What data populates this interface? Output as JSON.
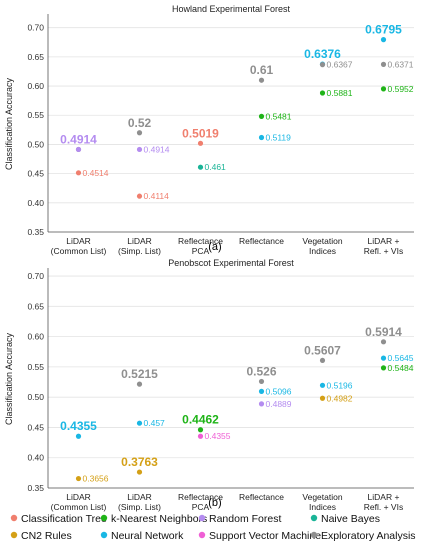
{
  "figure": {
    "label_a": "(a)",
    "label_b": "(b)"
  },
  "colors": {
    "Classification Tree": "#f07f6e",
    "k-Nearest Neighbors": "#1fb418",
    "Random Forest": "#b48cf0",
    "Naive Bayes": "#1ab497",
    "CN2 Rules": "#d4a017",
    "Neural Network": "#19b7e4",
    "Support Vector Machine": "#ef5fd5",
    "Exploratory Analysis": "#8f8f8f"
  },
  "legend": {
    "rows": [
      [
        "Classification Tree",
        "k-Nearest Neighbors",
        "Random Forest",
        "Naive Bayes"
      ],
      [
        "CN2 Rules",
        "Neural Network",
        "Support Vector Machine",
        "Exploratory Analysis"
      ]
    ]
  },
  "chart_data": [
    {
      "type": "scatter",
      "title": "Howland Experimental Forest",
      "ylabel": "Classification Accuracy",
      "xlabel": "",
      "ylim": [
        0.35,
        0.72
      ],
      "yticks": [
        "0.35",
        "0.40",
        "0.45",
        "0.50",
        "0.55",
        "0.60",
        "0.65",
        "0.70"
      ],
      "grid": true,
      "categories": [
        [
          "LiDAR",
          "(Common List)"
        ],
        [
          "LiDAR",
          "(Simp. List)"
        ],
        [
          "Reflectance",
          "PCA"
        ],
        [
          "Reflectance"
        ],
        [
          "Vegetation",
          "Indices"
        ],
        [
          "LiDAR +",
          "Refl. + VIs"
        ]
      ],
      "points": [
        {
          "cat": 0,
          "series": "Exploratory Analysis",
          "y": 0.4914,
          "label": "",
          "side": "none"
        },
        {
          "cat": 0,
          "series": "Random Forest",
          "y": 0.4914,
          "label": "0.4914",
          "side": "top"
        },
        {
          "cat": 0,
          "series": "Classification Tree",
          "y": 0.4514,
          "label": "0.4514",
          "side": "right"
        },
        {
          "cat": 1,
          "series": "Exploratory Analysis",
          "y": 0.52,
          "label": "0.52",
          "side": "top"
        },
        {
          "cat": 1,
          "series": "Random Forest",
          "y": 0.4914,
          "label": "0.4914",
          "side": "right"
        },
        {
          "cat": 1,
          "series": "Classification Tree",
          "y": 0.4114,
          "label": "0.4114",
          "side": "right"
        },
        {
          "cat": 2,
          "series": "Classification Tree",
          "y": 0.5019,
          "label": "0.5019",
          "side": "top"
        },
        {
          "cat": 2,
          "series": "Naive Bayes",
          "y": 0.461,
          "label": "0.461",
          "side": "right"
        },
        {
          "cat": 3,
          "series": "Exploratory Analysis",
          "y": 0.61,
          "label": "0.61",
          "side": "top"
        },
        {
          "cat": 3,
          "series": "k-Nearest Neighbors",
          "y": 0.5481,
          "label": "0.5481",
          "side": "right"
        },
        {
          "cat": 3,
          "series": "Neural Network",
          "y": 0.5119,
          "label": "0.5119",
          "side": "right"
        },
        {
          "cat": 4,
          "series": "Neural Network",
          "y": 0.6376,
          "label": "0.6376",
          "side": "top"
        },
        {
          "cat": 4,
          "series": "Exploratory Analysis",
          "y": 0.6367,
          "label": "0.6367",
          "side": "right"
        },
        {
          "cat": 4,
          "series": "k-Nearest Neighbors",
          "y": 0.5881,
          "label": "0.5881",
          "side": "right"
        },
        {
          "cat": 5,
          "series": "Neural Network",
          "y": 0.6795,
          "label": "0.6795",
          "side": "top"
        },
        {
          "cat": 5,
          "series": "Exploratory Analysis",
          "y": 0.6371,
          "label": "0.6371",
          "side": "right"
        },
        {
          "cat": 5,
          "series": "k-Nearest Neighbors",
          "y": 0.5952,
          "label": "0.5952",
          "side": "right"
        }
      ]
    },
    {
      "type": "scatter",
      "title": "Penobscot Experimental Forest",
      "ylabel": "Classification Accuracy",
      "xlabel": "",
      "ylim": [
        0.35,
        0.71
      ],
      "yticks": [
        "0.35",
        "0.40",
        "0.45",
        "0.50",
        "0.55",
        "0.60",
        "0.65",
        "0.70"
      ],
      "grid": true,
      "categories": [
        [
          "LiDAR",
          "(Common List)"
        ],
        [
          "LiDAR",
          "(Simp. List)"
        ],
        [
          "Reflectance",
          "PCA"
        ],
        [
          "Reflectance"
        ],
        [
          "Vegetation",
          "Indices"
        ],
        [
          "LiDAR +",
          "Refl. + VIs"
        ]
      ],
      "points": [
        {
          "cat": 0,
          "series": "Neural Network",
          "y": 0.4355,
          "label": "0.4355",
          "side": "top"
        },
        {
          "cat": 0,
          "series": "CN2 Rules",
          "y": 0.3656,
          "label": "0.3656",
          "side": "right"
        },
        {
          "cat": 1,
          "series": "Exploratory Analysis",
          "y": 0.5215,
          "label": "0.5215",
          "side": "top"
        },
        {
          "cat": 1,
          "series": "Neural Network",
          "y": 0.457,
          "label": "0.457",
          "side": "right"
        },
        {
          "cat": 1,
          "series": "CN2 Rules",
          "y": 0.3763,
          "label": "0.3763",
          "side": "top"
        },
        {
          "cat": 2,
          "series": "k-Nearest Neighbors",
          "y": 0.4462,
          "label": "0.4462",
          "side": "top"
        },
        {
          "cat": 2,
          "series": "Support Vector Machine",
          "y": 0.4355,
          "label": "0.4355",
          "side": "right"
        },
        {
          "cat": 3,
          "series": "Exploratory Analysis",
          "y": 0.526,
          "label": "0.526",
          "side": "top"
        },
        {
          "cat": 3,
          "series": "Neural Network",
          "y": 0.5096,
          "label": "0.5096",
          "side": "right"
        },
        {
          "cat": 3,
          "series": "Random Forest",
          "y": 0.4889,
          "label": "0.4889",
          "side": "right"
        },
        {
          "cat": 4,
          "series": "Exploratory Analysis",
          "y": 0.5607,
          "label": "0.5607",
          "side": "top"
        },
        {
          "cat": 4,
          "series": "Neural Network",
          "y": 0.5196,
          "label": "0.5196",
          "side": "right"
        },
        {
          "cat": 4,
          "series": "CN2 Rules",
          "y": 0.4982,
          "label": "0.4982",
          "side": "right"
        },
        {
          "cat": 5,
          "series": "Exploratory Analysis",
          "y": 0.5914,
          "label": "0.5914",
          "side": "top"
        },
        {
          "cat": 5,
          "series": "Neural Network",
          "y": 0.5645,
          "label": "0.5645",
          "side": "right"
        },
        {
          "cat": 5,
          "series": "k-Nearest Neighbors",
          "y": 0.5484,
          "label": "0.5484",
          "side": "right"
        }
      ]
    }
  ]
}
